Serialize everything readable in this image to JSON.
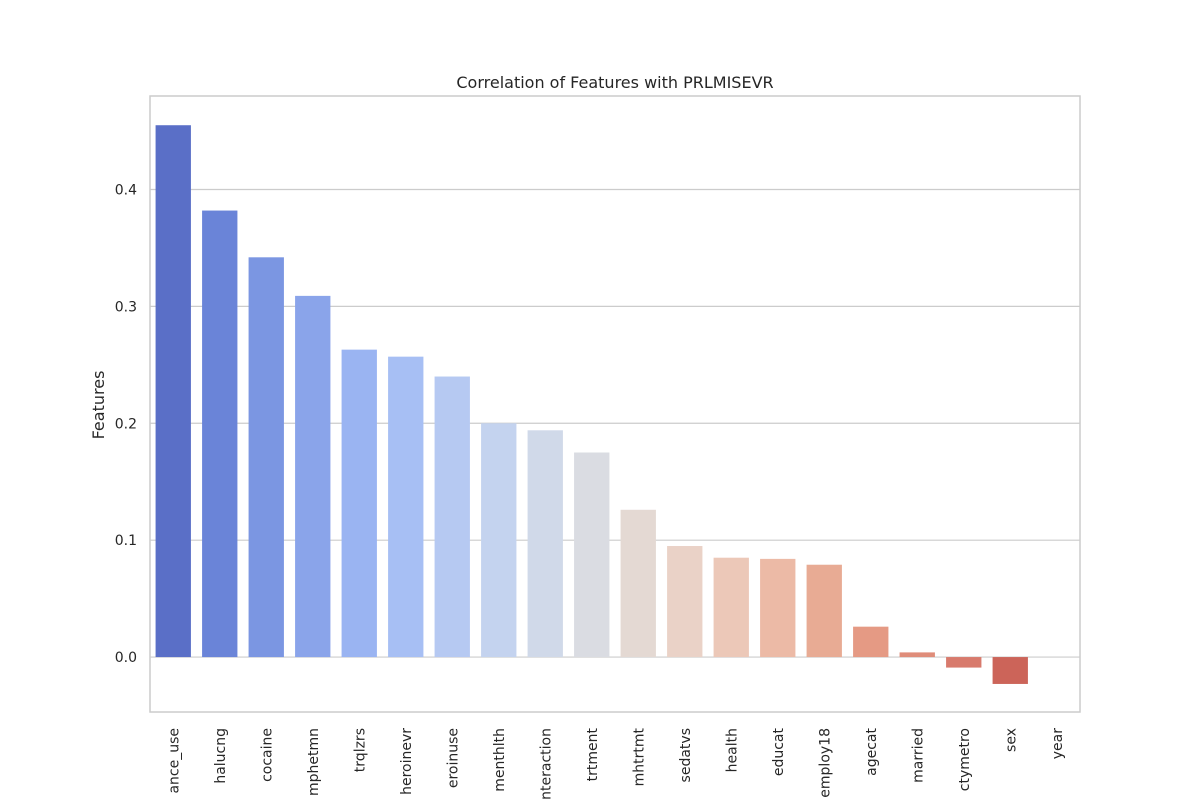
{
  "chart_data": {
    "type": "bar",
    "title": "Correlation of Features with PRLMISEVR",
    "xlabel": "",
    "ylabel": "Features",
    "ylim": [
      -0.047,
      0.48
    ],
    "yticks": [
      0.0,
      0.1,
      0.2,
      0.3,
      0.4
    ],
    "ytick_labels": [
      "0.0",
      "0.1",
      "0.2",
      "0.3",
      "0.4"
    ],
    "grid": true,
    "categories": [
      "substance_use",
      "halucng",
      "cocaine",
      "amphetmn",
      "trqlzrs",
      "heroinevr",
      "heroinuse",
      "menthlth",
      "interaction",
      "trtment",
      "mhtrtmt",
      "sedatvs",
      "health",
      "educat",
      "employ18",
      "agecat",
      "married",
      "ctymetro",
      "sex",
      "year"
    ],
    "category_labels": [
      "ance_use",
      "halucng",
      "cocaine",
      "mphetmn",
      "trqlzrs",
      "heroinevr",
      "eroinuse",
      "menthlth",
      "nteraction",
      "trtment",
      "mhtrtmt",
      "sedatvs",
      "health",
      "educat",
      "employ18",
      "agecat",
      "married",
      "ctymetro",
      "sex",
      "year"
    ],
    "values": [
      0.455,
      0.382,
      0.342,
      0.309,
      0.263,
      0.257,
      0.24,
      0.2,
      0.194,
      0.175,
      0.126,
      0.095,
      0.085,
      0.084,
      0.079,
      0.026,
      0.004,
      -0.009,
      -0.023,
      0.0
    ],
    "colors": [
      "#5a6fc7",
      "#6a84d8",
      "#7b96e2",
      "#8aa4ea",
      "#9ab4f2",
      "#a7bff4",
      "#b6c9f2",
      "#c4d3ef",
      "#d0d9e9",
      "#dadce2",
      "#e4d9d3",
      "#ead2c7",
      "#ecc8b8",
      "#ecbaa6",
      "#e8ab94",
      "#e59a84",
      "#df8d7a",
      "#d87a6c",
      "#cc6459",
      "#c0392b"
    ]
  }
}
